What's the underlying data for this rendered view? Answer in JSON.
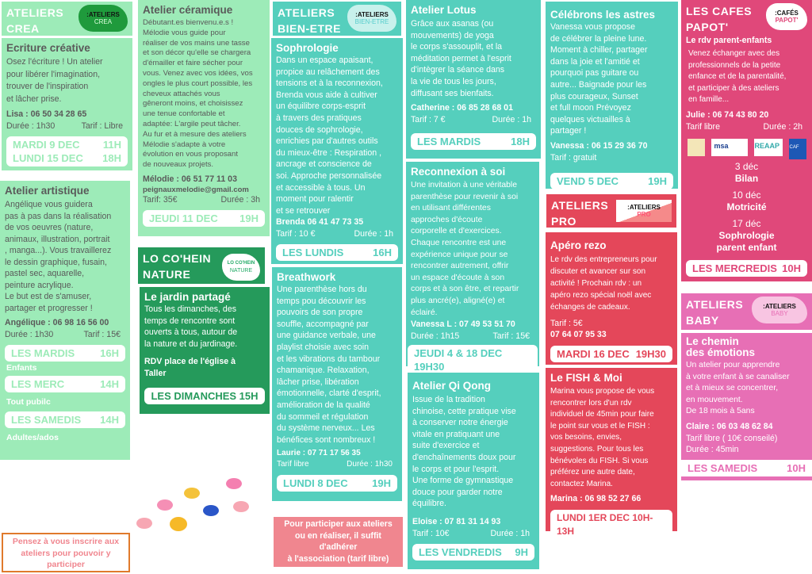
{
  "colors": {
    "light_green": "#9debb8",
    "dark_green": "#259a5b",
    "teal": "#55cfbd",
    "red": "#e4475a",
    "pink": "#e0487a",
    "baby_pink": "#e76fb5",
    "orange_border": "#e07a2c",
    "salmon": "#f0868f"
  },
  "crea": {
    "header": "ATELIERS\nCREA",
    "logo": ":ATELIERS",
    "logo_sub": "CREA",
    "ecriture": {
      "title": "Ecriture créative",
      "text": "Osez l'écriture !  Un atelier\npour libérer l'imagination,\ntrouver de l'inspiration\net lâcher prise.",
      "contact": "Lisa : 06 50 34 28 65",
      "duree": "Durée : 1h30",
      "tarif": "Tarif : Libre",
      "dates": [
        {
          "day": "MARDI 9 DEC",
          "time": "11H"
        },
        {
          "day": "LUNDI 15 DEC",
          "time": "18H"
        }
      ]
    },
    "artistique": {
      "title": "Atelier artistique",
      "text": "Angélique vous guidera\npas à pas dans la réalisation\nde vos oeuvres (nature,\nanimaux, illustration, portrait\n, manga...). Vous travaillerez\nle dessin graphique, fusain,\npastel sec, aquarelle,\npeinture acrylique.\nLe but est de s'amuser,\npartager et progresser !",
      "contact": "Angélique : 06 98 16 56 00",
      "duree": "Durée : 1h30",
      "tarif": "Tarif : 15€",
      "dates": [
        {
          "day": "LES MARDIS",
          "time": "16H",
          "note": "Enfants"
        },
        {
          "day": "LES MERC",
          "time": "14H",
          "note": "Tout pubilc"
        },
        {
          "day": "LES SAMEDIS",
          "time": "14H",
          "note": "Adultes/ados"
        }
      ]
    },
    "ceramique": {
      "title": "Atelier céramique",
      "text": "Débutant.es bienvenu.e.s !\nMélodie vous guide pour\nréaliser de vos mains une tasse\net son décor qu'elle se chargera\nd'émailler et faire sécher pour\nvous.  Venez avec vos idées, vos\nongles le plus court possible, les\ncheveux attachés vous\ngêneront moins, et choisissez\nune tenue confortable et\nadaptée: L'argile peut tâcher.\nAu fur et à mesure des ateliers\nMélodie s'adapte à votre\névolution en vous proposant\nde nouveaux projets.",
      "contact": "Mélodie : 06 51 77 11 03",
      "email": "peignauxmelodie@gmail.com",
      "tarif": "Tarif: 35€",
      "duree": "Durée : 3h",
      "date": {
        "day": "JEUDI 11 DEC",
        "time": "19H"
      }
    }
  },
  "nature": {
    "header": "LO CO'HEIN\nNATURE",
    "logo": "LO CO'HEIN",
    "logo_sub": "NATURE",
    "jardin": {
      "title": "Le jardin partagé",
      "text": "Tous les dimanches, des\ntemps de rencontre sont\nouverts à tous, autour de\nla nature et du jardinage.",
      "rdv": "RDV place de l'église à\nTaller",
      "date": "LES DIMANCHES 15H"
    }
  },
  "notice_orange": "Pensez à vous inscrire aux ateliers pour pouvoir y participer",
  "notice_salmon": "Pour participer aux ateliers\nou en réaliser, il suffit\nd'adhérer\nà l'association (tarif libre)",
  "bienetre": {
    "header": "ATELIERS\nBIEN-ETRE",
    "logo": ":ATELIERS",
    "logo_sub": "BIEN-ETRE",
    "sophro": {
      "title": "Sophrologie",
      "text": "Dans un espace apaisant,\npropice au relâchement des\ntensions et à la reconnexion,\nBrenda vous aide à cultiver\nun équilibre corps-esprit\nà travers des pratiques\ndouces de sophrologie,\nenrichies par d'autres outils\ndu mieux-être : Respiration ,\nancrage et  conscience de\nsoi. Approche personnalisée\net accessible à tous. Un\nmoment pour ralentir\net se retrouver",
      "contact": "Brenda 06 41 47 73 35",
      "tarif": "Tarif : 10 €",
      "duree": "Durée : 1h",
      "date": {
        "day": "LES LUNDIS",
        "time": "16H"
      }
    },
    "breath": {
      "title": "Breathwork",
      "text": "Une parenthèse hors du\ntemps pou découvrir les\npouvoirs de son propre\nsouffle, accompagné par\nune guidance verbale, une\nplaylist choisie avec soin\net les vibrations du tambour\nchamanique. Relaxation,\nlâcher prise, libération\némotionnelle, clarté d'esprit,\namélioration de la qualité\ndu sommeil et régulation\ndu système nerveux... Les\nbénéfices sont nombreux !",
      "contact": "Laurie : 07 71 17 56 35",
      "tarif": "Tarif libre",
      "duree": "Durée : 1h30",
      "date": {
        "day": "LUNDI 8 DEC",
        "time": "19H"
      }
    },
    "lotus": {
      "title": "Atelier Lotus",
      "text": "Grâce aux asanas (ou\nmouvements) de yoga\nle corps s'assouplit, et la\nméditation permet à l'esprit\nd'intègrer la séance dans\nla vie de tous les jours,\ndiffusant ses bienfaits.",
      "contact": "Catherine : 06 85 28 68 01",
      "tarif": "Tarif : 7 €",
      "duree": "Durée : 1h",
      "date": {
        "day": "LES MARDIS",
        "time": "18H"
      }
    },
    "reconnexion": {
      "title": "Reconnexion à soi",
      "text": "Une invitation à une véritable\nparenthèse pour revenir à soi\nen utilisant différentes\napproches d'écoute\ncorporelle et d'exercices.\nChaque rencontre est une\nexpérience unique pour se\nrencontrer autrement, offrir\nun espace d'écoute à son\ncorps et à son être, et repartir\nplus ancré(e), aligné(e) et\néclairé.",
      "contact": "Vanessa L : 07 49 53 51 70",
      "duree": "Durée : 1h15",
      "tarif": "Tarif : 15€",
      "date": "JEUDI 4 & 18 DEC 19H30"
    },
    "qiqong": {
      "title": "Atelier Qi Qong",
      "text": "Issue de la tradition\nchinoise, cette pratique vise\nà conserver notre énergie\nvitale en pratiquant une\nsuite d'exercice et\nd'enchaînements doux pour\nle corps et pour l'esprit.\nUne forme de gymnastique\ndouce pour garder notre\néquilibre.",
      "contact": "Eloise : 07 81 31 14 93",
      "tarif": "Tarif : 10€",
      "duree": "Durée : 1h",
      "date": {
        "day": "LES VENDREDIS",
        "time": "9H"
      }
    },
    "astres": {
      "title": "Célébrons les astres",
      "text": "Vanessa vous propose\nde célébrer la pleine lune.\nMoment à chiller, partager\ndans la joie et l'amitié et\npourquoi pas guitare ou\nautre... Baignade pour les\nplus courageux, Sunset\net full moon  Prévoyez\nquelques victuailles à\npartager !",
      "contact": "Vanessa : 06 15 29 36 70",
      "tarif": "Tarif : gratuit",
      "date": {
        "day": "VEND 5 DEC",
        "time": "19H"
      }
    }
  },
  "pro": {
    "header": "ATELIERS\nPRO",
    "logo": ":ATELIERS",
    "logo_sub": "PRO",
    "apero": {
      "title": "Apéro rezo",
      "text": "Le rdv des entrepreneurs pour\ndiscuter et avancer sur son\nactivité !  Prochain rdv : un\napéro rezo spécial noël avec\néchanges de cadeaux.",
      "tarif": "Tarif : 5€",
      "contact": "07 64 07 95 33",
      "date": {
        "day": "MARDI 16 DEC",
        "time": "19H30"
      }
    },
    "fish": {
      "title": "Le FISH & Moi",
      "text": "Marina vous propose de vous\nrencontrer lors d'un rdv\nindividuel de 45min pour faire\nle point sur vous et le FISH :\nvos besoins, envies,\nsuggestions.  Pour tous les\nbénévoles du FISH.  Si vous\npréférez une autre date,\ncontactez Marina.",
      "contact": "Marina  :  06 98 52 27 66",
      "date": "LUNDI 1ER DEC 10H-13H"
    }
  },
  "cafes": {
    "header": "LES CAFES\nPAPOT'",
    "logo": ":CAFÉS",
    "logo_sub": "PAPOT'",
    "subtitle": "Le rdv  parent-enfants",
    "text": "Venez échanger avec des\nprofessionnels de la petite\nenfance et de la parentalité,\net participer à des ateliers\nen famille...",
    "contact": "Julie : 06 74 43 80 20",
    "tarif": "Tarif libre",
    "duree": "Durée : 2h",
    "partners": [
      "msa",
      "REAAP",
      "CAF"
    ],
    "sessions": [
      {
        "date": "3 déc",
        "topic": "Bilan"
      },
      {
        "date": "10 déc",
        "topic": "Motricité"
      },
      {
        "date": "17 déc",
        "topic": "Sophrologie\nparent enfant"
      }
    ],
    "day": {
      "day": "LES MERCREDIS",
      "time": "10H"
    }
  },
  "baby": {
    "header": "ATELIERS\nBABY",
    "logo": ":ATELIERS",
    "logo_sub": "BABY",
    "chemin": {
      "title": "Le chemin\ndes émotions",
      "text": "Un atelier pour apprendre\nà votre enfant à se canaliser\net à mieux se concentrer,\nen mouvement.\nDe 18 mois à 5ans",
      "contact": "Claire :  06 03 48 62 84",
      "tarif": "Tarif libre ( 10€ conseilé)",
      "duree": "Durée : 45min",
      "date": {
        "day": "LES SAMEDIS",
        "time": "10H"
      }
    }
  }
}
